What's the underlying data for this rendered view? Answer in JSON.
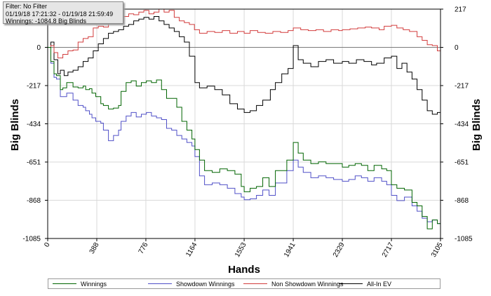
{
  "info_box": {
    "filter": "Filter: No Filter",
    "date_range": "01/19/18 17:21:32 - 01/19/18 21:59:49",
    "winnings": "Winnings: -1084.8 Big Blinds"
  },
  "chart_data": {
    "type": "line",
    "xlabel": "Hands",
    "ylabel": "Big Blinds",
    "ylabel_right": "Big Blinds",
    "xlim": [
      0,
      3105
    ],
    "ylim": [
      -1085,
      217
    ],
    "x_ticks": [
      "0",
      "388",
      "776",
      "1164",
      "1553",
      "1941",
      "2329",
      "2717",
      "3105"
    ],
    "y_ticks": [
      "217",
      "0",
      "-217",
      "-434",
      "-651",
      "-868",
      "-1085"
    ],
    "zero_line": true,
    "grid": true,
    "legend_position": "bottom",
    "series": [
      {
        "name": "Winnings",
        "color": "#006400",
        "points": [
          [
            0,
            0
          ],
          [
            25,
            -80
          ],
          [
            50,
            -150
          ],
          [
            70,
            -160
          ],
          [
            100,
            -240
          ],
          [
            120,
            -230
          ],
          [
            150,
            -200
          ],
          [
            200,
            -225
          ],
          [
            240,
            -230
          ],
          [
            280,
            -220
          ],
          [
            300,
            -240
          ],
          [
            330,
            -235
          ],
          [
            350,
            -260
          ],
          [
            380,
            -280
          ],
          [
            420,
            -320
          ],
          [
            440,
            -330
          ],
          [
            480,
            -350
          ],
          [
            520,
            -345
          ],
          [
            560,
            -330
          ],
          [
            580,
            -250
          ],
          [
            620,
            -200
          ],
          [
            660,
            -190
          ],
          [
            700,
            -220
          ],
          [
            740,
            -200
          ],
          [
            780,
            -190
          ],
          [
            820,
            -200
          ],
          [
            860,
            -185
          ],
          [
            900,
            -240
          ],
          [
            940,
            -290
          ],
          [
            980,
            -290
          ],
          [
            1020,
            -340
          ],
          [
            1060,
            -420
          ],
          [
            1100,
            -470
          ],
          [
            1140,
            -520
          ],
          [
            1164,
            -580
          ],
          [
            1200,
            -640
          ],
          [
            1240,
            -700
          ],
          [
            1300,
            -710
          ],
          [
            1360,
            -690
          ],
          [
            1420,
            -700
          ],
          [
            1480,
            -720
          ],
          [
            1530,
            -790
          ],
          [
            1553,
            -820
          ],
          [
            1600,
            -800
          ],
          [
            1650,
            -790
          ],
          [
            1700,
            -740
          ],
          [
            1750,
            -790
          ],
          [
            1800,
            -700
          ],
          [
            1850,
            -700
          ],
          [
            1890,
            -640
          ],
          [
            1941,
            -540
          ],
          [
            1980,
            -600
          ],
          [
            2020,
            -640
          ],
          [
            2080,
            -660
          ],
          [
            2140,
            -650
          ],
          [
            2200,
            -660
          ],
          [
            2260,
            -660
          ],
          [
            2329,
            -680
          ],
          [
            2380,
            -670
          ],
          [
            2430,
            -660
          ],
          [
            2480,
            -670
          ],
          [
            2530,
            -700
          ],
          [
            2580,
            -670
          ],
          [
            2640,
            -690
          ],
          [
            2680,
            -700
          ],
          [
            2717,
            -780
          ],
          [
            2760,
            -800
          ],
          [
            2820,
            -810
          ],
          [
            2880,
            -880
          ],
          [
            2920,
            -900
          ],
          [
            2960,
            -960
          ],
          [
            3000,
            -1030
          ],
          [
            3040,
            -980
          ],
          [
            3080,
            -1000
          ],
          [
            3105,
            -1085
          ]
        ]
      },
      {
        "name": "Showdown Winnings",
        "color": "#5050c8",
        "points": [
          [
            0,
            0
          ],
          [
            25,
            -90
          ],
          [
            50,
            -170
          ],
          [
            70,
            -180
          ],
          [
            100,
            -280
          ],
          [
            120,
            -280
          ],
          [
            150,
            -260
          ],
          [
            200,
            -300
          ],
          [
            240,
            -330
          ],
          [
            280,
            -340
          ],
          [
            300,
            -360
          ],
          [
            330,
            -380
          ],
          [
            350,
            -400
          ],
          [
            380,
            -420
          ],
          [
            420,
            -430
          ],
          [
            440,
            -470
          ],
          [
            480,
            -530
          ],
          [
            520,
            -500
          ],
          [
            560,
            -470
          ],
          [
            580,
            -420
          ],
          [
            620,
            -390
          ],
          [
            660,
            -370
          ],
          [
            700,
            -395
          ],
          [
            740,
            -380
          ],
          [
            780,
            -370
          ],
          [
            820,
            -390
          ],
          [
            860,
            -400
          ],
          [
            900,
            -410
          ],
          [
            940,
            -460
          ],
          [
            980,
            -470
          ],
          [
            1020,
            -500
          ],
          [
            1060,
            -520
          ],
          [
            1100,
            -540
          ],
          [
            1140,
            -560
          ],
          [
            1164,
            -620
          ],
          [
            1200,
            -730
          ],
          [
            1240,
            -780
          ],
          [
            1300,
            -770
          ],
          [
            1360,
            -780
          ],
          [
            1420,
            -800
          ],
          [
            1480,
            -830
          ],
          [
            1530,
            -850
          ],
          [
            1553,
            -865
          ],
          [
            1600,
            -860
          ],
          [
            1650,
            -840
          ],
          [
            1700,
            -810
          ],
          [
            1750,
            -840
          ],
          [
            1800,
            -770
          ],
          [
            1850,
            -770
          ],
          [
            1890,
            -700
          ],
          [
            1941,
            -640
          ],
          [
            1980,
            -680
          ],
          [
            2020,
            -710
          ],
          [
            2080,
            -740
          ],
          [
            2140,
            -730
          ],
          [
            2200,
            -740
          ],
          [
            2260,
            -750
          ],
          [
            2329,
            -760
          ],
          [
            2380,
            -750
          ],
          [
            2430,
            -730
          ],
          [
            2480,
            -740
          ],
          [
            2530,
            -760
          ],
          [
            2580,
            -740
          ],
          [
            2640,
            -760
          ],
          [
            2680,
            -780
          ],
          [
            2717,
            -840
          ],
          [
            2760,
            -870
          ],
          [
            2820,
            -850
          ],
          [
            2880,
            -900
          ],
          [
            2920,
            -930
          ],
          [
            2960,
            -970
          ],
          [
            3000,
            -990
          ],
          [
            3040,
            -980
          ],
          [
            3080,
            -1000
          ],
          [
            3105,
            -1000
          ]
        ]
      },
      {
        "name": "Non Showdown Winnings",
        "color": "#d23c3c",
        "points": [
          [
            0,
            0
          ],
          [
            25,
            10
          ],
          [
            50,
            -30
          ],
          [
            80,
            -60
          ],
          [
            120,
            -40
          ],
          [
            160,
            -20
          ],
          [
            200,
            -15
          ],
          [
            240,
            30
          ],
          [
            280,
            50
          ],
          [
            320,
            60
          ],
          [
            360,
            110
          ],
          [
            400,
            120
          ],
          [
            440,
            115
          ],
          [
            480,
            135
          ],
          [
            520,
            150
          ],
          [
            560,
            140
          ],
          [
            600,
            175
          ],
          [
            640,
            190
          ],
          [
            680,
            185
          ],
          [
            720,
            200
          ],
          [
            760,
            210
          ],
          [
            800,
            190
          ],
          [
            840,
            200
          ],
          [
            880,
            217
          ],
          [
            920,
            200
          ],
          [
            960,
            210
          ],
          [
            1000,
            170
          ],
          [
            1040,
            150
          ],
          [
            1080,
            140
          ],
          [
            1120,
            130
          ],
          [
            1160,
            100
          ],
          [
            1200,
            80
          ],
          [
            1260,
            90
          ],
          [
            1320,
            85
          ],
          [
            1380,
            95
          ],
          [
            1440,
            80
          ],
          [
            1500,
            90
          ],
          [
            1553,
            80
          ],
          [
            1600,
            95
          ],
          [
            1660,
            85
          ],
          [
            1720,
            80
          ],
          [
            1780,
            90
          ],
          [
            1841,
            85
          ],
          [
            1900,
            95
          ],
          [
            1941,
            110
          ],
          [
            2000,
            100
          ],
          [
            2060,
            95
          ],
          [
            2120,
            100
          ],
          [
            2180,
            90
          ],
          [
            2240,
            100
          ],
          [
            2300,
            95
          ],
          [
            2329,
            100
          ],
          [
            2390,
            105
          ],
          [
            2450,
            110
          ],
          [
            2510,
            115
          ],
          [
            2560,
            110
          ],
          [
            2620,
            100
          ],
          [
            2660,
            120
          ],
          [
            2717,
            125
          ],
          [
            2760,
            110
          ],
          [
            2810,
            100
          ],
          [
            2860,
            90
          ],
          [
            2920,
            60
          ],
          [
            2960,
            40
          ],
          [
            3000,
            15
          ],
          [
            3040,
            10
          ],
          [
            3080,
            -20
          ],
          [
            3105,
            -30
          ]
        ]
      },
      {
        "name": "All-In EV",
        "color": "#000000",
        "points": [
          [
            0,
            0
          ],
          [
            25,
            30
          ],
          [
            50,
            -70
          ],
          [
            80,
            -150
          ],
          [
            100,
            -130
          ],
          [
            130,
            -160
          ],
          [
            160,
            -140
          ],
          [
            200,
            -130
          ],
          [
            240,
            -110
          ],
          [
            280,
            -80
          ],
          [
            320,
            -60
          ],
          [
            360,
            -20
          ],
          [
            400,
            20
          ],
          [
            440,
            50
          ],
          [
            480,
            80
          ],
          [
            520,
            90
          ],
          [
            560,
            100
          ],
          [
            600,
            120
          ],
          [
            640,
            130
          ],
          [
            680,
            150
          ],
          [
            720,
            160
          ],
          [
            760,
            170
          ],
          [
            800,
            160
          ],
          [
            840,
            175
          ],
          [
            880,
            150
          ],
          [
            920,
            130
          ],
          [
            960,
            110
          ],
          [
            1000,
            90
          ],
          [
            1040,
            60
          ],
          [
            1080,
            30
          ],
          [
            1120,
            -50
          ],
          [
            1164,
            -200
          ],
          [
            1200,
            -230
          ],
          [
            1260,
            -220
          ],
          [
            1320,
            -240
          ],
          [
            1380,
            -270
          ],
          [
            1440,
            -320
          ],
          [
            1500,
            -350
          ],
          [
            1553,
            -370
          ],
          [
            1600,
            -360
          ],
          [
            1650,
            -330
          ],
          [
            1700,
            -300
          ],
          [
            1760,
            -240
          ],
          [
            1800,
            -200
          ],
          [
            1850,
            -150
          ],
          [
            1900,
            -120
          ],
          [
            1941,
            10
          ],
          [
            1980,
            -70
          ],
          [
            2020,
            -90
          ],
          [
            2080,
            -110
          ],
          [
            2140,
            -80
          ],
          [
            2200,
            -70
          ],
          [
            2260,
            -90
          ],
          [
            2329,
            -80
          ],
          [
            2380,
            -90
          ],
          [
            2440,
            -70
          ],
          [
            2500,
            -80
          ],
          [
            2560,
            -100
          ],
          [
            2600,
            -90
          ],
          [
            2660,
            -60
          ],
          [
            2717,
            -50
          ],
          [
            2760,
            -120
          ],
          [
            2800,
            -90
          ],
          [
            2840,
            -140
          ],
          [
            2880,
            -180
          ],
          [
            2920,
            -240
          ],
          [
            2960,
            -300
          ],
          [
            3000,
            -360
          ],
          [
            3040,
            -380
          ],
          [
            3080,
            -370
          ],
          [
            3105,
            -430
          ]
        ]
      }
    ]
  }
}
